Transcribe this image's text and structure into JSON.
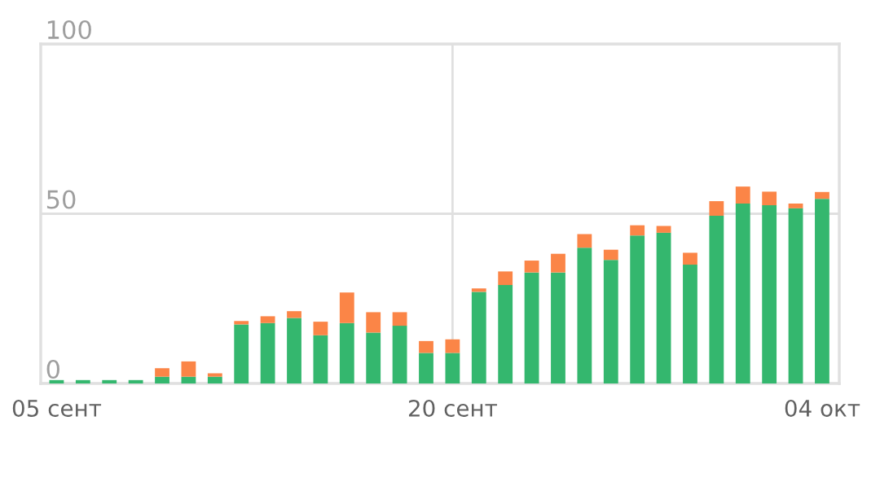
{
  "chart_data": {
    "type": "bar",
    "stacked": true,
    "categories": [
      "05 сент",
      null,
      null,
      null,
      null,
      null,
      null,
      null,
      null,
      null,
      null,
      null,
      null,
      null,
      null,
      "20 сент",
      null,
      null,
      null,
      null,
      null,
      null,
      null,
      null,
      null,
      null,
      null,
      null,
      null,
      "04 окт"
    ],
    "series": [
      {
        "color": "#34b76e",
        "values": [
          1,
          1,
          1,
          1,
          2,
          2,
          2,
          17.4,
          17.8,
          19.3,
          14.2,
          17.8,
          15,
          17,
          9,
          9,
          27,
          29,
          32.7,
          32.7,
          40,
          36.4,
          43.6,
          44.4,
          35,
          49.4,
          53,
          52.5,
          51.6,
          54.4
        ]
      },
      {
        "color": "#fb8547",
        "values": [
          0,
          0,
          0,
          0,
          2.5,
          4.5,
          1,
          1,
          2,
          2,
          4,
          9,
          6,
          4,
          3.5,
          4,
          1,
          4,
          3.5,
          5.5,
          4,
          3,
          3,
          2,
          3.5,
          4.3,
          5,
          4,
          1.4,
          2
        ]
      }
    ],
    "ylim": [
      0,
      100
    ],
    "yticks": [
      0,
      50,
      100
    ],
    "grid": true
  }
}
